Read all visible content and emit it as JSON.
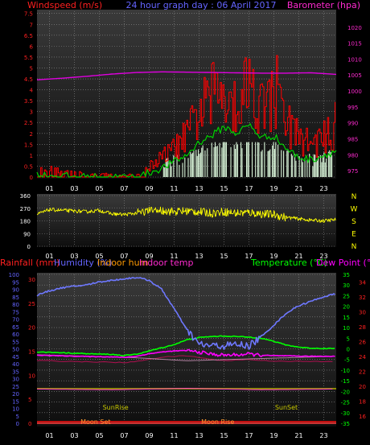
{
  "colors": {
    "background": "#000000",
    "plot_bg_top": "#3a3a3a",
    "plot_bg_bottom": "#111111",
    "grid": "#8c8c8c",
    "wind_speed": "#ff0000",
    "wind_avg": "#00d000",
    "wind_light": "#d8f4d8",
    "barometer": "#e000e0",
    "direction": "#ffff00",
    "rain": "#ff4040",
    "humidity": "#6e78ff",
    "indoor_hum": "#b080a0",
    "indoor_temp": "#ff40c0",
    "temperature": "#00ff00",
    "dew_point": "#ff00ff",
    "dew_line": "#b01050",
    "sun_text": "#c8c800",
    "moon_text": "#ff9a30",
    "label_red": "#ff2020",
    "label_blue": "#6464ff",
    "label_orange": "#ff9a00",
    "label_magenta": "#ff2ad0",
    "label_green": "#00ff00",
    "cardinal_yellow": "#ffff00"
  },
  "chart_data": [
    {
      "type": "line",
      "title": "24 hour graph day : 06 April 2017",
      "xlabel": "",
      "x_ticks": [
        "01",
        "03",
        "05",
        "07",
        "09",
        "11",
        "13",
        "15",
        "17",
        "19",
        "21",
        "23"
      ],
      "left_axis": {
        "label": "Windspeed (m/s)",
        "ticks": [
          "0",
          "0.5",
          "1",
          "1.5",
          "2",
          "2.5",
          "3",
          "3.5",
          "4",
          "4.5",
          "5",
          "5.5",
          "6",
          "6.5",
          "7",
          "7.5"
        ],
        "ylim": [
          0,
          7.6
        ]
      },
      "right_axis": {
        "label": "Barometer (hpa)",
        "ticks": [
          "975",
          "980",
          "985",
          "990",
          "995",
          "1000",
          "1005",
          "1010",
          "1015",
          "1020"
        ],
        "ylim": [
          973,
          1025
        ]
      },
      "series": [
        {
          "axis": "right",
          "x": [
            0,
            2,
            4,
            6,
            8,
            10,
            12,
            14,
            16,
            18,
            20,
            22,
            24
          ],
          "values": [
            1003.5,
            1004.0,
            1004.6,
            1005.3,
            1005.8,
            1006.0,
            1005.9,
            1005.8,
            1005.7,
            1005.6,
            1005.6,
            1005.7,
            1005.2
          ]
        },
        {
          "axis": "left",
          "x": [
            0,
            2,
            4,
            6,
            8,
            9,
            10,
            11,
            12,
            13,
            14,
            15,
            16,
            17,
            18,
            19,
            20,
            21,
            22,
            23,
            24
          ],
          "values": [
            0.5,
            0.3,
            0.2,
            0.1,
            0.1,
            0.5,
            0.9,
            1.3,
            1.9,
            3.0,
            3.6,
            4.2,
            3.3,
            4.5,
            3.2,
            3.6,
            2.4,
            1.8,
            1.5,
            1.8,
            2.1
          ]
        },
        {
          "axis": "left",
          "x": [
            0,
            2,
            4,
            6,
            8,
            9,
            10,
            11,
            12,
            13,
            14,
            15,
            16,
            17,
            18,
            19,
            20,
            21,
            22,
            23,
            24
          ],
          "values": [
            0.1,
            0.05,
            0.0,
            0.0,
            0.0,
            0.2,
            0.4,
            0.7,
            1.0,
            1.6,
            1.9,
            2.3,
            2.0,
            2.4,
            1.8,
            1.9,
            1.3,
            0.9,
            0.8,
            1.0,
            1.2
          ]
        }
      ]
    },
    {
      "type": "line",
      "title": "",
      "x_ticks": [
        "01",
        "03",
        "05",
        "07",
        "09",
        "11",
        "13",
        "15",
        "17",
        "19",
        "21",
        "23"
      ],
      "left_axis": {
        "label": "",
        "ticks": [
          "0",
          "90",
          "180",
          "270",
          "360"
        ],
        "ylim": [
          0,
          360
        ]
      },
      "right_labels": [
        "N",
        "W",
        "S",
        "E",
        "N"
      ],
      "series": [
        {
          "x": [
            0,
            1,
            2,
            3,
            4,
            5,
            6,
            7,
            8,
            9,
            10,
            11,
            12,
            13,
            14,
            15,
            16,
            17,
            18,
            19,
            20,
            21,
            22,
            23,
            24
          ],
          "values": [
            225,
            260,
            255,
            250,
            245,
            255,
            230,
            225,
            235,
            250,
            255,
            245,
            250,
            245,
            235,
            245,
            235,
            240,
            230,
            225,
            205,
            195,
            185,
            180,
            190
          ]
        }
      ]
    },
    {
      "type": "line",
      "title": "",
      "x_ticks": [
        "01",
        "03",
        "05",
        "07",
        "09",
        "11",
        "13",
        "15",
        "17",
        "19",
        "21",
        "23"
      ],
      "legend": [
        "Rainfall (mm)",
        "Humidity (%)",
        "Indoor hum",
        "Indoor temp",
        "Temperature (°C)",
        "Dew Point (°C)"
      ],
      "left_axis_outer": {
        "label": "Rainfall (mm)",
        "ticks": [
          "0",
          "5",
          "10",
          "15",
          "20",
          "25",
          "30"
        ],
        "ylim": [
          0,
          31
        ]
      },
      "left_axis_inner": {
        "label": "Humidity (%)",
        "ticks": [
          "0",
          "5",
          "10",
          "15",
          "20",
          "25",
          "30",
          "35",
          "40",
          "45",
          "50",
          "55",
          "60",
          "65",
          "70",
          "75",
          "80",
          "85",
          "90",
          "95",
          "100"
        ],
        "ylim": [
          0,
          100
        ]
      },
      "right_axis_inner": {
        "label": "Temperature (°C)",
        "ticks": [
          "-35",
          "-30",
          "-25",
          "-20",
          "-15",
          "-10",
          "-5",
          "0",
          "5",
          "10",
          "15",
          "20",
          "25",
          "30",
          "35"
        ],
        "ylim": [
          -35,
          35
        ]
      },
      "right_axis_outer": {
        "label": "Indoor temp",
        "ticks": [
          "16",
          "18",
          "20",
          "22",
          "24",
          "26",
          "28",
          "30",
          "32",
          "34"
        ],
        "ylim": [
          15,
          35
        ]
      },
      "series": [
        {
          "name": "Humidity (%)",
          "x": [
            0,
            1,
            2,
            3,
            4,
            5,
            6,
            7,
            8,
            9,
            10,
            11,
            12,
            13,
            14,
            15,
            16,
            17,
            18,
            19,
            20,
            21,
            22,
            23,
            24
          ],
          "values": [
            86,
            89,
            91,
            92,
            93,
            95,
            96,
            97,
            98,
            96,
            90,
            77,
            63,
            53,
            52,
            52,
            53,
            52,
            58,
            66,
            74,
            79,
            82,
            85,
            87
          ]
        },
        {
          "name": "Temperature (°C)",
          "x": [
            0,
            2,
            4,
            6,
            7,
            8,
            9,
            10,
            11,
            12,
            13,
            14,
            15,
            16,
            17,
            18,
            19,
            20,
            21,
            22,
            23,
            24
          ],
          "values": [
            -1.5,
            -1.8,
            -2.3,
            -2.6,
            -3.2,
            -2.5,
            -1.0,
            0.5,
            2.0,
            4.2,
            5.3,
            5.8,
            6.0,
            5.8,
            5.5,
            5.0,
            3.5,
            1.8,
            0.8,
            0.3,
            0.2,
            0.2
          ]
        },
        {
          "name": "Dew Point (°C)",
          "x": [
            0,
            2,
            4,
            6,
            7,
            8,
            9,
            10,
            11,
            12,
            13,
            14,
            15,
            16,
            17,
            18,
            19,
            20,
            21,
            22,
            23,
            24
          ],
          "values": [
            -3.0,
            -3.3,
            -3.6,
            -3.8,
            -4.0,
            -3.5,
            -2.3,
            -1.5,
            -1.0,
            -0.8,
            -1.5,
            -2.5,
            -3.0,
            -2.8,
            -2.5,
            -3.0,
            -3.2,
            -3.3,
            -3.4,
            -3.5,
            -3.5,
            -3.5
          ]
        },
        {
          "name": "Indoor hum",
          "x": [
            0,
            4,
            8,
            12,
            16,
            20,
            24
          ],
          "values": [
            46,
            45,
            44,
            42,
            43,
            44,
            45
          ]
        },
        {
          "name": "Indoor temp",
          "x": [
            0,
            6,
            12,
            18,
            24
          ],
          "values": [
            19.6,
            19.5,
            19.7,
            19.5,
            19.6
          ]
        },
        {
          "name": "Rainfall (mm)",
          "x": [
            0,
            24
          ],
          "values": [
            0,
            0
          ]
        }
      ],
      "annotations": [
        {
          "text": "SunRise",
          "at_hour": 6.3
        },
        {
          "text": "SunSet",
          "at_hour": 20.0
        },
        {
          "text": "Moon Set",
          "at_hour": 4.7
        },
        {
          "text": "Moon Rise",
          "at_hour": 14.5
        }
      ]
    }
  ]
}
